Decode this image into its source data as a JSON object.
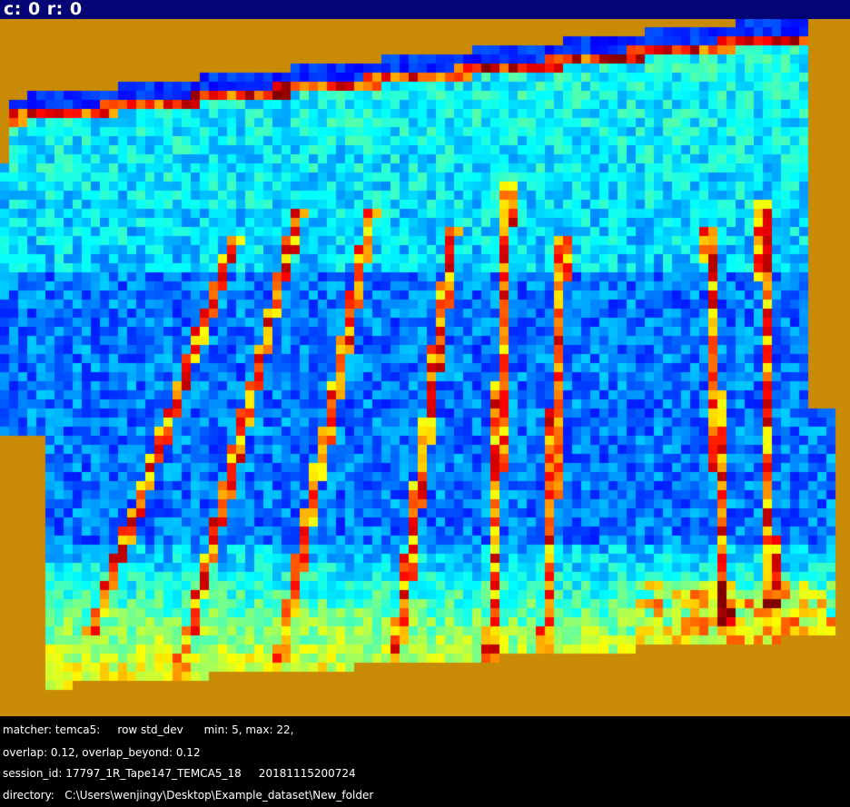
{
  "header": {
    "coords_label": "c: 0 r: 0"
  },
  "colors": {
    "background": "#c98a06",
    "header_bar": "#040474",
    "footer": "#000000"
  },
  "info": {
    "line1": "matcher: temca5:     row std_dev      min: 5, max: 22,",
    "line2": "overlap: 0.12, overlap_beyond: 0.12",
    "line3": "session_id: 17797_1R_Tape147_TEMCA5_18     20181115200724",
    "line4": "directory:   C:\\Users\\wenjingy\\Desktop\\Example_dataset\\New_folder"
  }
}
